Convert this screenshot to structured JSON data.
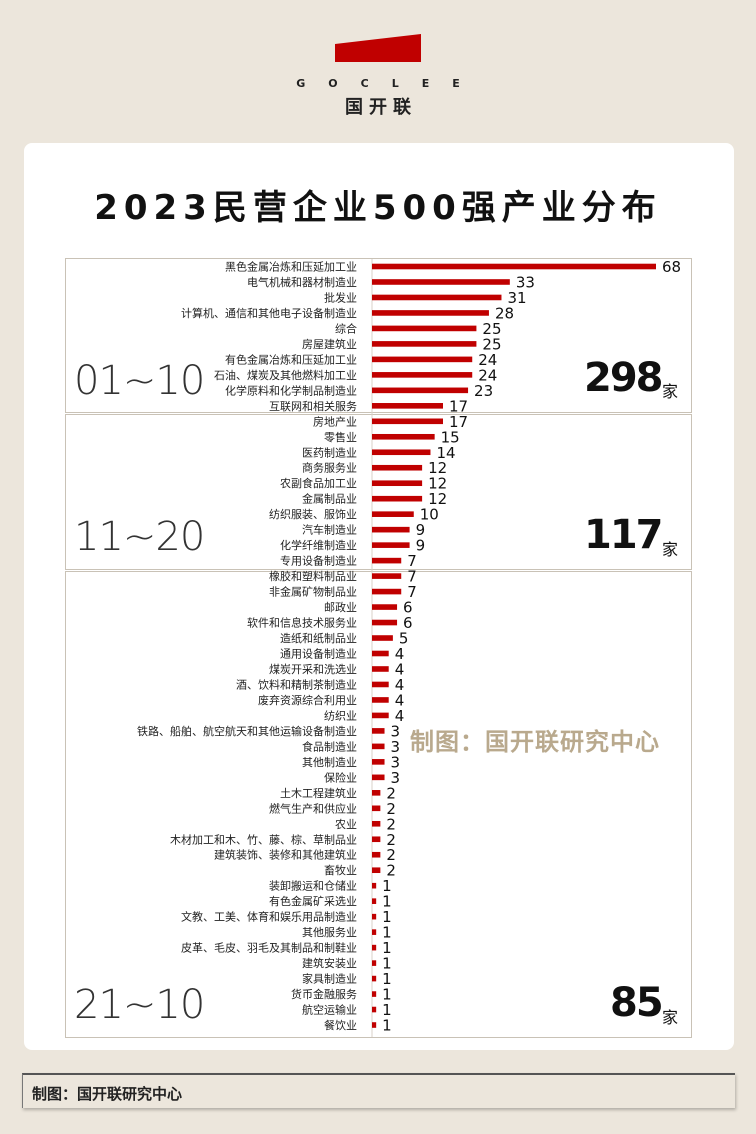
{
  "brand": {
    "en": "GOCLEE",
    "cn": "国开联",
    "color": "#c00000"
  },
  "title": "2023民营企业500强产业分布",
  "watermark": "制图：国开联研究中心",
  "footer": "制图：国开联研究中心",
  "groups": [
    {
      "range": "01~10",
      "total": "298",
      "unit": "家"
    },
    {
      "range": "11~20",
      "total": "117",
      "unit": "家"
    },
    {
      "range": "21~10",
      "total": "85",
      "unit": "家"
    }
  ],
  "chart_data": {
    "type": "bar",
    "orientation": "horizontal",
    "bar_color": "#c00000",
    "categories": [
      "黑色金属冶炼和压延加工业",
      "电气机械和器材制造业",
      "批发业",
      "计算机、通信和其他电子设备制造业",
      "综合",
      "房屋建筑业",
      "有色金属冶炼和压延加工业",
      "石油、煤炭及其他燃料加工业",
      "化学原料和化学制品制造业",
      "互联网和相关服务",
      "房地产业",
      "零售业",
      "医药制造业",
      "商务服务业",
      "农副食品加工业",
      "金属制品业",
      "纺织服装、服饰业",
      "汽车制造业",
      "化学纤维制造业",
      "专用设备制造业",
      "橡胶和塑料制品业",
      "非金属矿物制品业",
      "邮政业",
      "软件和信息技术服务业",
      "造纸和纸制品业",
      "通用设备制造业",
      "煤炭开采和洗选业",
      "酒、饮料和精制茶制造业",
      "废弃资源综合利用业",
      "纺织业",
      "铁路、船舶、航空航天和其他运输设备制造业",
      "食品制造业",
      "其他制造业",
      "保险业",
      "土木工程建筑业",
      "燃气生产和供应业",
      "农业",
      "木材加工和木、竹、藤、棕、草制品业",
      "建筑装饰、装修和其他建筑业",
      "畜牧业",
      "装卸搬运和仓储业",
      "有色金属矿采选业",
      "文教、工美、体育和娱乐用品制造业",
      "其他服务业",
      "皮革、毛皮、羽毛及其制品和制鞋业",
      "建筑安装业",
      "家具制造业",
      "货币金融服务",
      "航空运输业",
      "餐饮业"
    ],
    "values": [
      68,
      33,
      31,
      28,
      25,
      25,
      24,
      24,
      23,
      17,
      17,
      15,
      14,
      12,
      12,
      12,
      10,
      9,
      9,
      7,
      7,
      7,
      6,
      6,
      5,
      4,
      4,
      4,
      4,
      4,
      3,
      3,
      3,
      3,
      2,
      2,
      2,
      2,
      2,
      2,
      1,
      1,
      1,
      1,
      1,
      1,
      1,
      1,
      1,
      1
    ],
    "xlim": [
      0,
      68
    ]
  }
}
